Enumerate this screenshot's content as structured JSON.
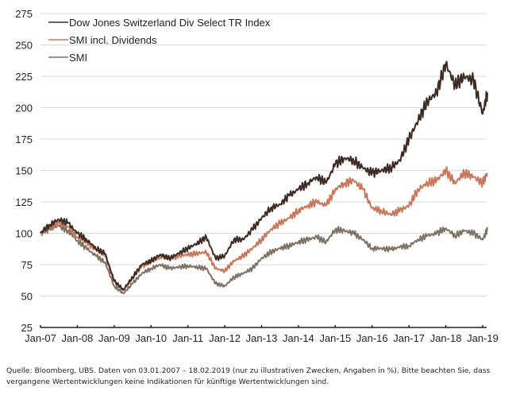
{
  "chart_data": {
    "type": "line",
    "title": "",
    "xlabel": "",
    "ylabel": "",
    "ylim": [
      25,
      275
    ],
    "yticks": [
      25,
      50,
      75,
      100,
      125,
      150,
      175,
      200,
      225,
      250,
      275
    ],
    "ytick_labels": [
      "25",
      "50",
      "75",
      "100",
      "125",
      "150",
      "175",
      "200",
      "225",
      "250",
      "275"
    ],
    "xlim": [
      2007.0,
      2019.13
    ],
    "xticks": [
      2007,
      2008,
      2009,
      2010,
      2011,
      2012,
      2013,
      2014,
      2015,
      2016,
      2017,
      2018,
      2019
    ],
    "xtick_labels": [
      "Jan-07",
      "Jan-08",
      "Jan-09",
      "Jan-10",
      "Jan-11",
      "Jan-12",
      "Jan-13",
      "Jan-14",
      "Jan-15",
      "Jan-16",
      "Jan-17",
      "Jan-18",
      "Jan-19"
    ],
    "grid": "horizontal",
    "legend_position": "top-left",
    "x": [
      2007.0,
      2007.25,
      2007.5,
      2007.75,
      2008.0,
      2008.25,
      2008.5,
      2008.75,
      2009.0,
      2009.25,
      2009.5,
      2009.75,
      2010.0,
      2010.25,
      2010.5,
      2010.75,
      2011.0,
      2011.25,
      2011.5,
      2011.75,
      2012.0,
      2012.25,
      2012.5,
      2012.75,
      2013.0,
      2013.25,
      2013.5,
      2013.75,
      2014.0,
      2014.25,
      2014.5,
      2014.75,
      2015.0,
      2015.25,
      2015.5,
      2015.75,
      2016.0,
      2016.25,
      2016.5,
      2016.75,
      2017.0,
      2017.25,
      2017.5,
      2017.75,
      2018.0,
      2018.25,
      2018.5,
      2018.75,
      2019.0,
      2019.13
    ],
    "series": [
      {
        "name": "Dow Jones Switzerland Div Select TR Index",
        "color": "#3d2b24",
        "values": [
          100,
          107,
          111,
          108,
          100,
          95,
          88,
          84,
          62,
          55,
          65,
          75,
          78,
          83,
          80,
          84,
          88,
          92,
          97,
          80,
          82,
          95,
          95,
          103,
          112,
          120,
          123,
          130,
          135,
          140,
          145,
          140,
          155,
          160,
          158,
          152,
          148,
          150,
          152,
          158,
          175,
          190,
          205,
          212,
          235,
          218,
          225,
          222,
          195,
          212
        ]
      },
      {
        "name": "SMI incl. Dividends",
        "color": "#c8775a",
        "values": [
          100,
          105,
          108,
          105,
          97,
          93,
          87,
          82,
          62,
          55,
          64,
          74,
          77,
          82,
          80,
          82,
          83,
          84,
          85,
          72,
          70,
          78,
          82,
          88,
          95,
          103,
          108,
          112,
          118,
          122,
          125,
          122,
          135,
          140,
          142,
          135,
          120,
          118,
          115,
          118,
          122,
          135,
          140,
          142,
          150,
          140,
          148,
          145,
          140,
          148
        ]
      },
      {
        "name": "SMI",
        "color": "#7d7263",
        "values": [
          100,
          104,
          106,
          102,
          94,
          88,
          82,
          77,
          58,
          52,
          60,
          68,
          72,
          75,
          72,
          73,
          74,
          73,
          72,
          60,
          58,
          65,
          68,
          72,
          80,
          85,
          88,
          90,
          93,
          95,
          97,
          93,
          103,
          102,
          100,
          95,
          88,
          88,
          87,
          89,
          90,
          95,
          98,
          100,
          104,
          98,
          102,
          100,
          95,
          103
        ]
      }
    ]
  },
  "footnote": {
    "line1": "Quelle: Bloomberg, UBS. Daten von 03.01.2007 – 18.02.2019 (nur zu illustrativen Zwecken, Angaben in %). Bitte beachten Sie, dass",
    "line2": "vergangene Wertentwicklungen keine Indikationen für künftige Wertentwicklungen sind."
  }
}
